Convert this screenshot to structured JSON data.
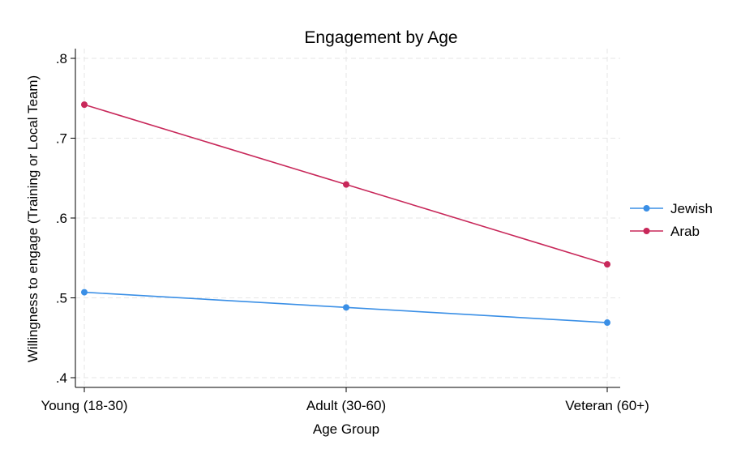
{
  "chart_data": {
    "type": "line",
    "title": "Engagement by Age",
    "xlabel": "Age Group",
    "ylabel": "Willingness to engage (Training or Local Team)",
    "categories": [
      "Young (18-30)",
      "Adult (30-60)",
      "Veteran (60+)"
    ],
    "ylim": [
      0.4,
      0.8
    ],
    "yticks": [
      0.4,
      0.5,
      0.6,
      0.7,
      0.8
    ],
    "ytick_labels": [
      ".4",
      ".5",
      ".6",
      ".7",
      ".8"
    ],
    "grid": true,
    "legend_position": "right",
    "series": [
      {
        "name": "Jewish",
        "color": "#3a8fe6",
        "values": [
          0.507,
          0.488,
          0.469
        ]
      },
      {
        "name": "Arab",
        "color": "#c8285a",
        "values": [
          0.742,
          0.642,
          0.542
        ]
      }
    ]
  }
}
